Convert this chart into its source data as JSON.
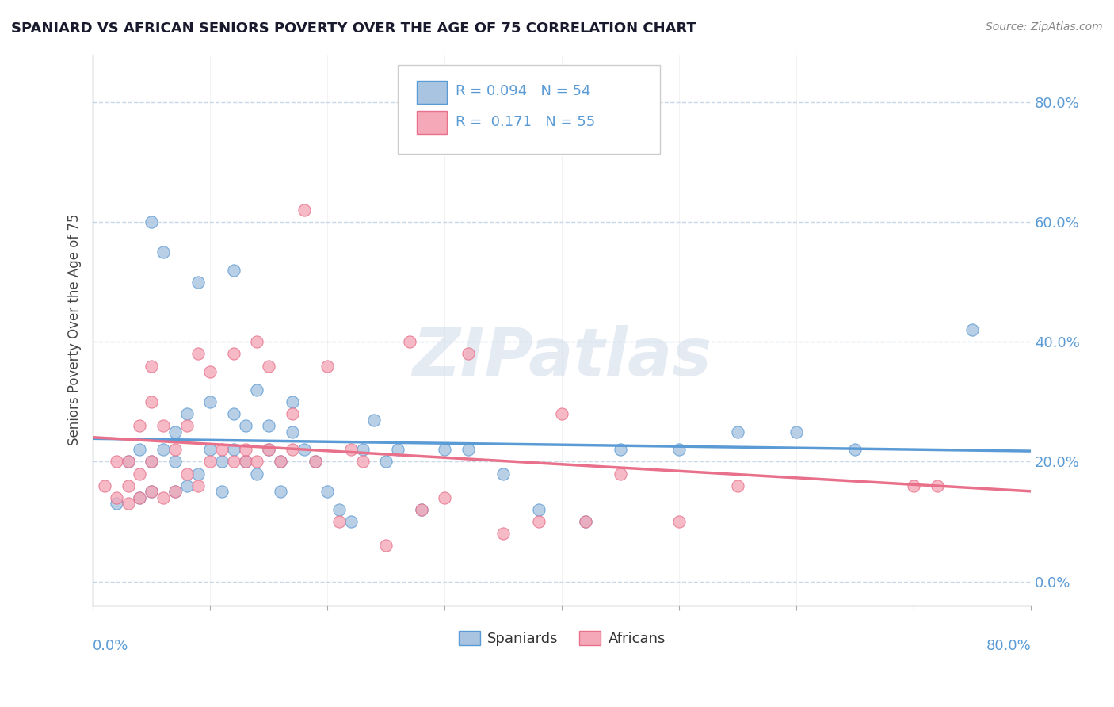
{
  "title": "SPANIARD VS AFRICAN SENIORS POVERTY OVER THE AGE OF 75 CORRELATION CHART",
  "source": "Source: ZipAtlas.com",
  "ylabel": "Seniors Poverty Over the Age of 75",
  "yticks_labels": [
    "0.0%",
    "20.0%",
    "40.0%",
    "60.0%",
    "80.0%"
  ],
  "ytick_vals": [
    0.0,
    0.2,
    0.4,
    0.6,
    0.8
  ],
  "xlim": [
    0.0,
    0.8
  ],
  "ylim": [
    -0.04,
    0.88
  ],
  "watermark": "ZIPatlas",
  "legend_box": {
    "spaniards_R": 0.094,
    "spaniards_N": 54,
    "africans_R": 0.171,
    "africans_N": 55
  },
  "spaniards_color": "#a8c4e0",
  "africans_color": "#f4a8b8",
  "spaniards_line_color": "#5b9bd5",
  "africans_line_color": "#e8708a",
  "background_color": "#ffffff",
  "grid_color": "#c8d8e8",
  "spaniards_x": [
    0.02,
    0.03,
    0.04,
    0.04,
    0.05,
    0.05,
    0.05,
    0.06,
    0.06,
    0.07,
    0.07,
    0.07,
    0.08,
    0.08,
    0.09,
    0.09,
    0.1,
    0.1,
    0.11,
    0.11,
    0.12,
    0.12,
    0.12,
    0.13,
    0.13,
    0.14,
    0.14,
    0.15,
    0.15,
    0.16,
    0.16,
    0.17,
    0.17,
    0.18,
    0.19,
    0.2,
    0.21,
    0.22,
    0.23,
    0.24,
    0.25,
    0.26,
    0.28,
    0.3,
    0.32,
    0.35,
    0.38,
    0.42,
    0.45,
    0.5,
    0.55,
    0.6,
    0.65,
    0.75
  ],
  "spaniards_y": [
    0.13,
    0.2,
    0.14,
    0.22,
    0.15,
    0.2,
    0.6,
    0.22,
    0.55,
    0.15,
    0.2,
    0.25,
    0.16,
    0.28,
    0.18,
    0.5,
    0.22,
    0.3,
    0.2,
    0.15,
    0.22,
    0.28,
    0.52,
    0.2,
    0.26,
    0.18,
    0.32,
    0.22,
    0.26,
    0.15,
    0.2,
    0.25,
    0.3,
    0.22,
    0.2,
    0.15,
    0.12,
    0.1,
    0.22,
    0.27,
    0.2,
    0.22,
    0.12,
    0.22,
    0.22,
    0.18,
    0.12,
    0.1,
    0.22,
    0.22,
    0.25,
    0.25,
    0.22,
    0.42
  ],
  "africans_x": [
    0.01,
    0.02,
    0.02,
    0.03,
    0.03,
    0.03,
    0.04,
    0.04,
    0.04,
    0.05,
    0.05,
    0.05,
    0.05,
    0.06,
    0.06,
    0.07,
    0.07,
    0.08,
    0.08,
    0.09,
    0.09,
    0.1,
    0.1,
    0.11,
    0.12,
    0.12,
    0.13,
    0.13,
    0.14,
    0.14,
    0.15,
    0.15,
    0.16,
    0.17,
    0.17,
    0.18,
    0.19,
    0.2,
    0.21,
    0.22,
    0.23,
    0.25,
    0.27,
    0.28,
    0.3,
    0.32,
    0.35,
    0.38,
    0.4,
    0.42,
    0.45,
    0.5,
    0.55,
    0.7,
    0.72
  ],
  "africans_y": [
    0.16,
    0.14,
    0.2,
    0.13,
    0.16,
    0.2,
    0.14,
    0.18,
    0.26,
    0.15,
    0.2,
    0.3,
    0.36,
    0.14,
    0.26,
    0.15,
    0.22,
    0.18,
    0.26,
    0.16,
    0.38,
    0.2,
    0.35,
    0.22,
    0.2,
    0.38,
    0.2,
    0.22,
    0.2,
    0.4,
    0.22,
    0.36,
    0.2,
    0.22,
    0.28,
    0.62,
    0.2,
    0.36,
    0.1,
    0.22,
    0.2,
    0.06,
    0.4,
    0.12,
    0.14,
    0.38,
    0.08,
    0.1,
    0.28,
    0.1,
    0.18,
    0.1,
    0.16,
    0.16,
    0.16
  ]
}
